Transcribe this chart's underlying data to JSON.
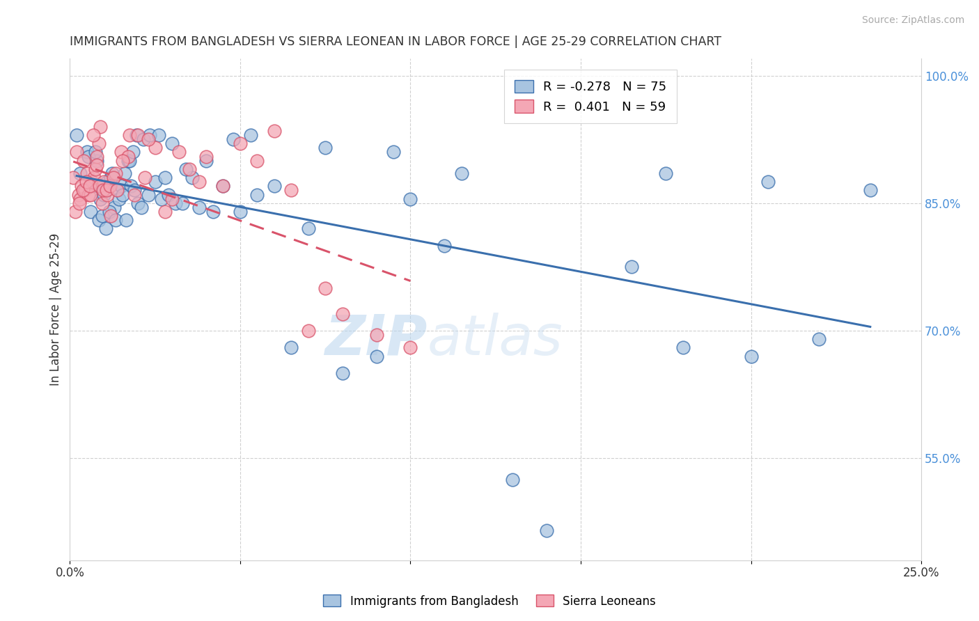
{
  "title": "IMMIGRANTS FROM BANGLADESH VS SIERRA LEONEAN IN LABOR FORCE | AGE 25-29 CORRELATION CHART",
  "source": "Source: ZipAtlas.com",
  "ylabel": "In Labor Force | Age 25-29",
  "yticks": [
    100.0,
    85.0,
    70.0,
    55.0
  ],
  "ytick_labels": [
    "100.0%",
    "85.0%",
    "70.0%",
    "55.0%"
  ],
  "xlim": [
    0.0,
    25.0
  ],
  "ylim": [
    43.0,
    102.0
  ],
  "blue_r": -0.278,
  "blue_n": 75,
  "pink_r": 0.401,
  "pink_n": 59,
  "blue_color": "#a8c4e0",
  "pink_color": "#f4a7b5",
  "blue_line_color": "#3a6fad",
  "pink_line_color": "#d9536a",
  "watermark_zip": "ZIP",
  "watermark_atlas": "atlas",
  "legend_label_blue": "Immigrants from Bangladesh",
  "legend_label_pink": "Sierra Leoneans",
  "blue_scatter_x": [
    0.3,
    0.5,
    0.6,
    0.7,
    0.8,
    0.9,
    1.0,
    1.1,
    1.2,
    1.3,
    1.4,
    1.5,
    1.6,
    1.7,
    1.8,
    1.9,
    2.0,
    2.1,
    2.3,
    2.5,
    2.7,
    2.9,
    3.1,
    3.3,
    3.6,
    3.8,
    4.2,
    4.5,
    5.0,
    5.5,
    6.0,
    6.5,
    7.0,
    8.0,
    9.0,
    10.0,
    11.0,
    13.0,
    14.0,
    16.5,
    18.0,
    20.0,
    22.0,
    0.2,
    0.4,
    0.55,
    0.65,
    0.75,
    0.85,
    0.95,
    1.05,
    1.15,
    1.25,
    1.35,
    1.45,
    1.55,
    1.65,
    1.75,
    1.85,
    1.95,
    2.15,
    2.35,
    2.6,
    2.8,
    3.0,
    3.4,
    4.0,
    4.8,
    5.3,
    7.5,
    9.5,
    11.5,
    17.5,
    20.5,
    23.5
  ],
  "blue_scatter_y": [
    88.5,
    91.0,
    84.0,
    87.0,
    90.0,
    85.5,
    86.0,
    87.5,
    88.0,
    84.5,
    86.5,
    87.0,
    88.5,
    90.0,
    87.0,
    86.5,
    85.0,
    84.5,
    86.0,
    87.5,
    85.5,
    86.0,
    85.0,
    85.0,
    88.0,
    84.5,
    84.0,
    87.0,
    84.0,
    86.0,
    87.0,
    68.0,
    82.0,
    65.0,
    67.0,
    85.5,
    80.0,
    52.5,
    46.5,
    77.5,
    68.0,
    67.0,
    69.0,
    93.0,
    86.5,
    90.5,
    87.0,
    91.0,
    83.0,
    83.5,
    82.0,
    84.0,
    88.5,
    83.0,
    85.5,
    86.0,
    83.0,
    90.0,
    91.0,
    93.0,
    92.5,
    93.0,
    93.0,
    88.0,
    92.0,
    89.0,
    90.0,
    92.5,
    93.0,
    91.5,
    91.0,
    88.5,
    88.5,
    87.5,
    86.5
  ],
  "pink_scatter_x": [
    0.1,
    0.2,
    0.25,
    0.3,
    0.35,
    0.4,
    0.45,
    0.5,
    0.55,
    0.6,
    0.65,
    0.7,
    0.75,
    0.8,
    0.85,
    0.9,
    0.95,
    1.0,
    1.1,
    1.2,
    1.35,
    1.5,
    1.7,
    1.9,
    2.2,
    2.5,
    3.0,
    3.5,
    4.0,
    5.0,
    6.0,
    0.15,
    0.28,
    0.38,
    0.48,
    0.58,
    0.68,
    0.78,
    0.88,
    0.98,
    1.08,
    1.18,
    1.28,
    1.38,
    1.55,
    1.75,
    2.0,
    2.3,
    2.8,
    3.2,
    3.8,
    4.5,
    5.5,
    6.5,
    7.0,
    7.5,
    8.0,
    9.0,
    10.0
  ],
  "pink_scatter_y": [
    88.0,
    91.0,
    86.0,
    85.5,
    87.0,
    90.0,
    86.5,
    88.5,
    86.0,
    86.0,
    87.5,
    88.0,
    89.0,
    90.5,
    92.0,
    94.0,
    85.0,
    87.5,
    86.0,
    83.5,
    88.5,
    91.0,
    90.5,
    86.0,
    88.0,
    91.5,
    85.5,
    89.0,
    90.5,
    92.0,
    93.5,
    84.0,
    85.0,
    86.5,
    87.5,
    87.0,
    93.0,
    89.5,
    87.0,
    86.5,
    86.5,
    87.0,
    88.0,
    86.5,
    90.0,
    93.0,
    93.0,
    92.5,
    84.0,
    91.0,
    87.5,
    87.0,
    90.0,
    86.5,
    70.0,
    75.0,
    72.0,
    69.5,
    68.0
  ]
}
